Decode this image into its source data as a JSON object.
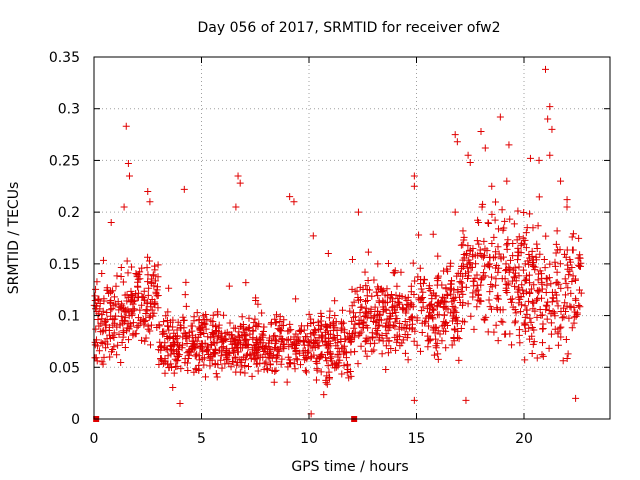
{
  "chart_data": {
    "type": "scatter",
    "title": "Day 056 of 2017, SRMTID for receiver ofw2",
    "xlabel": "GPS time / hours",
    "ylabel": "SRMTID / TECUs",
    "xlim": [
      0,
      24
    ],
    "ylim": [
      0,
      0.35
    ],
    "xticks": [
      0,
      5,
      10,
      15,
      20
    ],
    "xtick_labels": [
      "0",
      "5",
      "10",
      "15",
      "20"
    ],
    "yticks": [
      0,
      0.05,
      0.1,
      0.15,
      0.2,
      0.25,
      0.3,
      0.35
    ],
    "ytick_labels": [
      "0",
      "0.05",
      "0.1",
      "0.15",
      "0.2",
      "0.25",
      "0.3",
      "0.35"
    ],
    "grid": true,
    "marker": "plus",
    "color": "#e00000",
    "time_span": [
      0.0,
      22.7
    ],
    "segments": [
      {
        "x0": 0.0,
        "x1": 1.5,
        "low": 0.04,
        "high": 0.14,
        "n": 120
      },
      {
        "x0": 1.5,
        "x1": 3.0,
        "low": 0.05,
        "high": 0.16,
        "n": 120
      },
      {
        "x0": 3.0,
        "x1": 5.0,
        "low": 0.02,
        "high": 0.11,
        "n": 160
      },
      {
        "x0": 5.0,
        "x1": 7.0,
        "low": 0.03,
        "high": 0.1,
        "n": 160
      },
      {
        "x0": 7.0,
        "x1": 10.0,
        "low": 0.03,
        "high": 0.1,
        "n": 220
      },
      {
        "x0": 10.0,
        "x1": 12.0,
        "low": 0.02,
        "high": 0.11,
        "n": 160
      },
      {
        "x0": 12.0,
        "x1": 15.0,
        "low": 0.04,
        "high": 0.14,
        "n": 220
      },
      {
        "x0": 15.0,
        "x1": 17.0,
        "low": 0.04,
        "high": 0.16,
        "n": 160
      },
      {
        "x0": 17.0,
        "x1": 20.0,
        "low": 0.05,
        "high": 0.2,
        "n": 220
      },
      {
        "x0": 20.0,
        "x1": 22.7,
        "low": 0.03,
        "high": 0.19,
        "n": 200
      }
    ],
    "outliers": [
      {
        "x": 0.8,
        "y": 0.19
      },
      {
        "x": 1.4,
        "y": 0.205
      },
      {
        "x": 1.5,
        "y": 0.283
      },
      {
        "x": 1.6,
        "y": 0.247
      },
      {
        "x": 1.65,
        "y": 0.235
      },
      {
        "x": 2.5,
        "y": 0.22
      },
      {
        "x": 2.6,
        "y": 0.21
      },
      {
        "x": 4.2,
        "y": 0.222
      },
      {
        "x": 6.7,
        "y": 0.235
      },
      {
        "x": 6.8,
        "y": 0.228
      },
      {
        "x": 6.6,
        "y": 0.205
      },
      {
        "x": 9.1,
        "y": 0.215
      },
      {
        "x": 9.3,
        "y": 0.21
      },
      {
        "x": 10.2,
        "y": 0.177
      },
      {
        "x": 12.3,
        "y": 0.2
      },
      {
        "x": 14.9,
        "y": 0.235
      },
      {
        "x": 14.9,
        "y": 0.225
      },
      {
        "x": 16.8,
        "y": 0.275
      },
      {
        "x": 16.9,
        "y": 0.268
      },
      {
        "x": 17.4,
        "y": 0.255
      },
      {
        "x": 17.5,
        "y": 0.248
      },
      {
        "x": 18.0,
        "y": 0.278
      },
      {
        "x": 18.2,
        "y": 0.262
      },
      {
        "x": 18.9,
        "y": 0.292
      },
      {
        "x": 19.3,
        "y": 0.265
      },
      {
        "x": 19.2,
        "y": 0.23
      },
      {
        "x": 20.3,
        "y": 0.252
      },
      {
        "x": 20.7,
        "y": 0.25
      },
      {
        "x": 21.0,
        "y": 0.338
      },
      {
        "x": 21.2,
        "y": 0.302
      },
      {
        "x": 21.1,
        "y": 0.29
      },
      {
        "x": 21.3,
        "y": 0.28
      },
      {
        "x": 21.7,
        "y": 0.23
      },
      {
        "x": 22.0,
        "y": 0.205
      },
      {
        "x": 21.2,
        "y": 0.255
      },
      {
        "x": 16.8,
        "y": 0.2
      },
      {
        "x": 18.5,
        "y": 0.225
      },
      {
        "x": 10.9,
        "y": 0.16
      },
      {
        "x": 13.2,
        "y": 0.15
      },
      {
        "x": 4.0,
        "y": 0.015
      },
      {
        "x": 10.1,
        "y": 0.005
      },
      {
        "x": 17.3,
        "y": 0.018
      },
      {
        "x": 14.9,
        "y": 0.018
      },
      {
        "x": 22.4,
        "y": 0.02
      }
    ],
    "zero_markers": [
      {
        "x": 0.1,
        "y": 0
      },
      {
        "x": 12.1,
        "y": 0
      }
    ]
  }
}
